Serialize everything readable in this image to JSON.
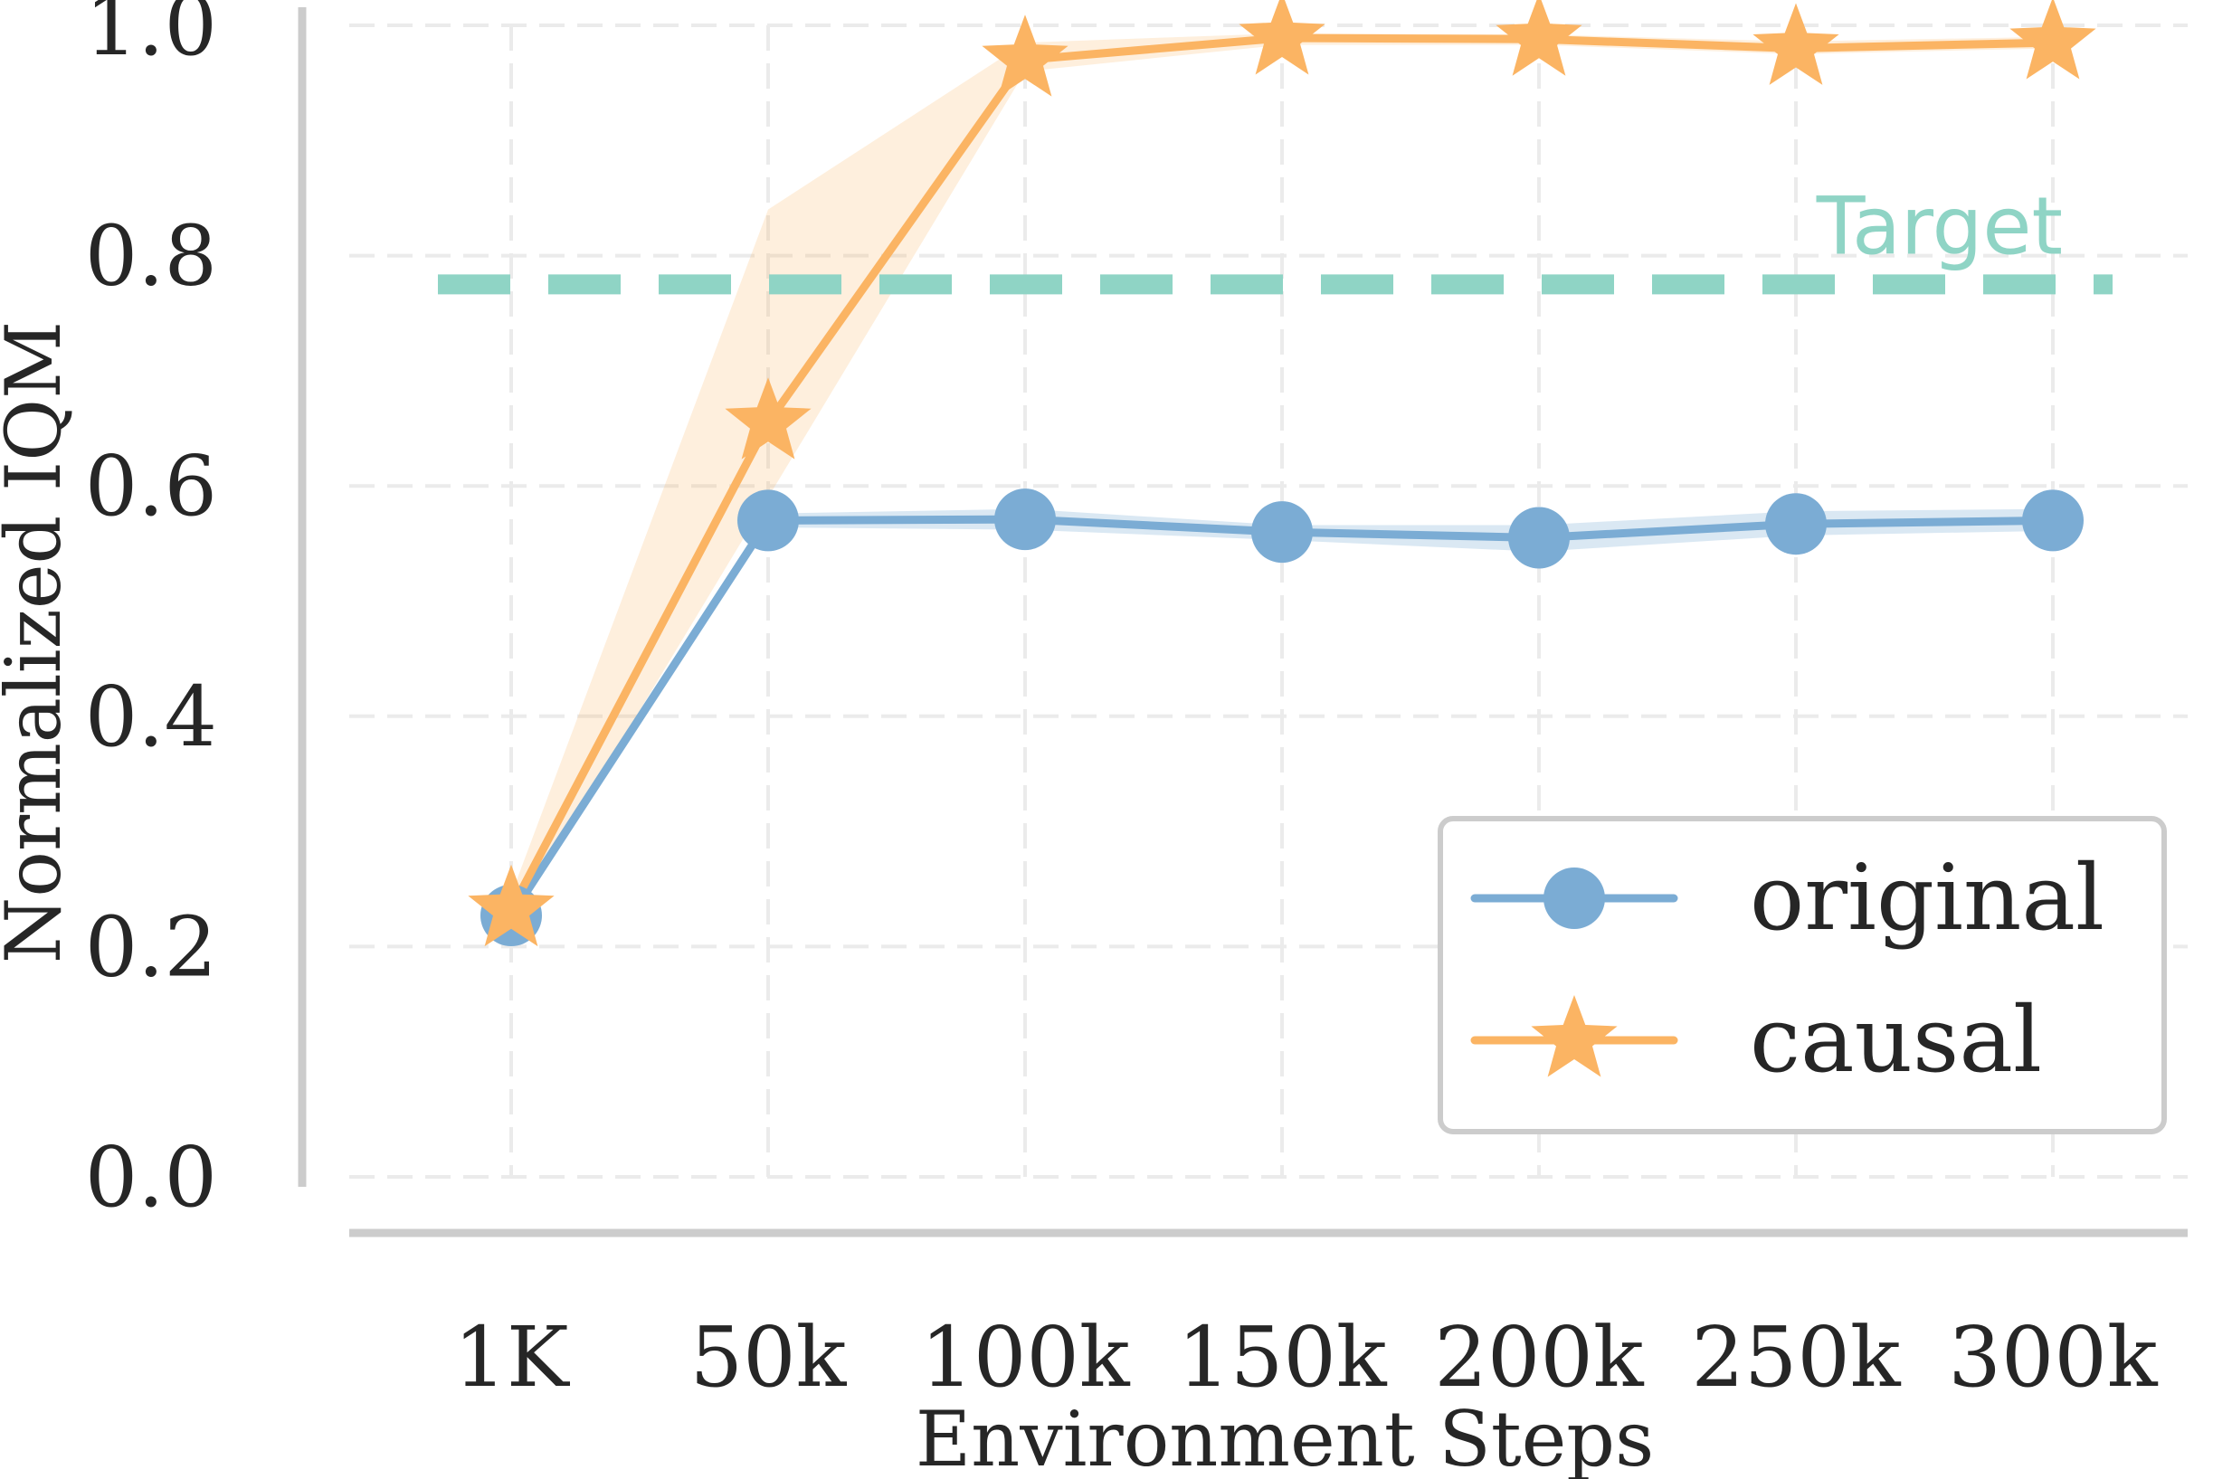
{
  "chart_data": {
    "type": "line",
    "xlabel": "Environment Steps",
    "ylabel": "Normalized IQM",
    "categories": [
      "1K",
      "50k",
      "100k",
      "150k",
      "200k",
      "250k",
      "300k"
    ],
    "yticks": [
      "0.0",
      "0.2",
      "0.4",
      "0.6",
      "0.8",
      "1.0"
    ],
    "ylim": [
      0.0,
      1.0
    ],
    "grid": true,
    "legend_position": "lower-right",
    "series": [
      {
        "name": "original",
        "color": "#7bacd4",
        "marker": "circle",
        "values": [
          0.227,
          0.57,
          0.571,
          0.56,
          0.555,
          0.567,
          0.57
        ],
        "lower": [
          0.221,
          0.564,
          0.562,
          0.553,
          0.543,
          0.557,
          0.561
        ],
        "upper": [
          0.233,
          0.576,
          0.58,
          0.566,
          0.566,
          0.578,
          0.58
        ]
      },
      {
        "name": "causal",
        "color": "#fbb463",
        "marker": "star",
        "values": [
          0.232,
          0.655,
          0.97,
          0.989,
          0.988,
          0.98,
          0.985
        ],
        "lower": [
          0.22,
          0.59,
          0.96,
          0.983,
          0.983,
          0.975,
          0.98
        ],
        "upper": [
          0.245,
          0.84,
          0.985,
          0.993,
          0.992,
          0.986,
          0.99
        ]
      }
    ],
    "reference_line": {
      "label": "Target",
      "value": 0.775,
      "color": "#8fd4c5"
    }
  }
}
